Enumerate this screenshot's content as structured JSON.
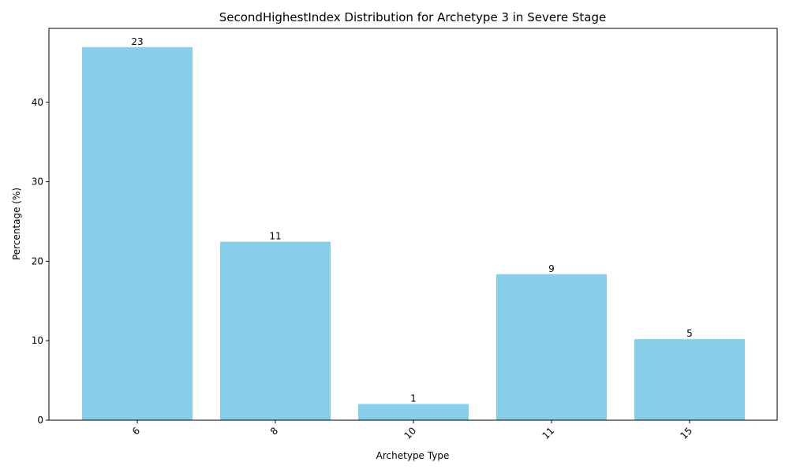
{
  "chart_data": {
    "type": "bar",
    "title": "SecondHighestIndex Distribution for Archetype 3 in Severe Stage",
    "xlabel": "Archetype Type",
    "ylabel": "Percentage (%)",
    "categories": [
      "6",
      "8",
      "10",
      "11",
      "15"
    ],
    "values": [
      46.94,
      22.45,
      2.04,
      18.37,
      10.2
    ],
    "bar_labels": [
      "23",
      "11",
      "1",
      "9",
      "5"
    ],
    "ylim": [
      0,
      49.3
    ],
    "yticks": [
      0,
      10,
      20,
      30,
      40
    ],
    "bar_color": "#87ceeb",
    "grid": false,
    "legend": "none"
  }
}
